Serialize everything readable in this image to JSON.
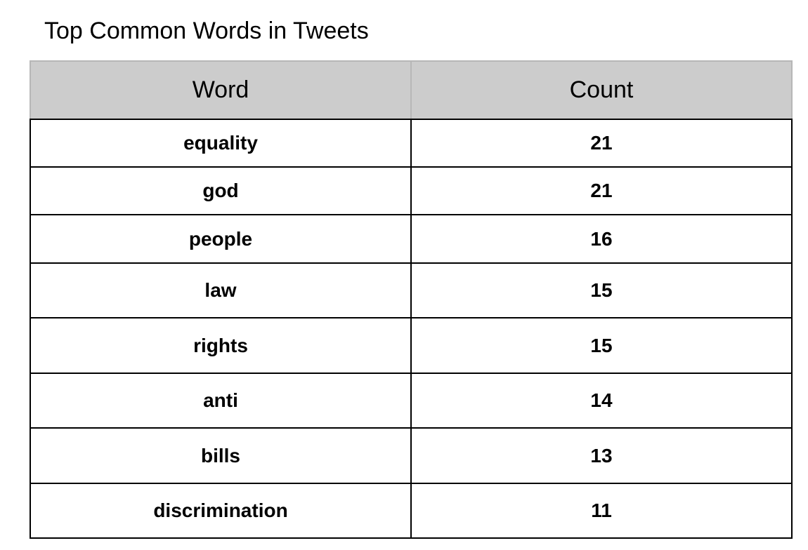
{
  "chart_data": {
    "type": "table",
    "title": "Top Common Words in Tweets",
    "columns": [
      "Word",
      "Count"
    ],
    "rows": [
      {
        "word": "equality",
        "count": 21
      },
      {
        "word": "god",
        "count": 21
      },
      {
        "word": "people",
        "count": 16
      },
      {
        "word": "law",
        "count": 15
      },
      {
        "word": "rights",
        "count": 15
      },
      {
        "word": "anti",
        "count": 14
      },
      {
        "word": "bills",
        "count": 13
      },
      {
        "word": "discrimination",
        "count": 11
      }
    ]
  },
  "colors": {
    "header_background": "#cccccc",
    "header_border": "#b7b7b7",
    "grid": "#000000"
  }
}
